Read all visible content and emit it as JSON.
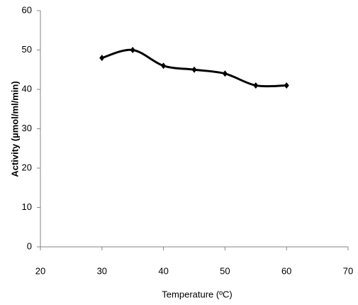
{
  "chart_data": {
    "type": "line",
    "x_label": "Temperature (ºC)",
    "y_label": "Activity (µmol/ml/min)",
    "x": [
      30,
      35,
      40,
      45,
      50,
      55,
      60
    ],
    "series": [
      {
        "color": "#000000",
        "values": [
          48,
          50,
          46,
          45,
          44,
          41,
          41
        ]
      }
    ],
    "xlim": [
      20,
      70
    ],
    "xticks": [
      20,
      30,
      40,
      50,
      60,
      70
    ],
    "ylim": [
      0,
      60
    ],
    "yticks": [
      0,
      10,
      20,
      30,
      40,
      50,
      60
    ],
    "grid": false,
    "smooth": true,
    "marker": "diamond"
  }
}
